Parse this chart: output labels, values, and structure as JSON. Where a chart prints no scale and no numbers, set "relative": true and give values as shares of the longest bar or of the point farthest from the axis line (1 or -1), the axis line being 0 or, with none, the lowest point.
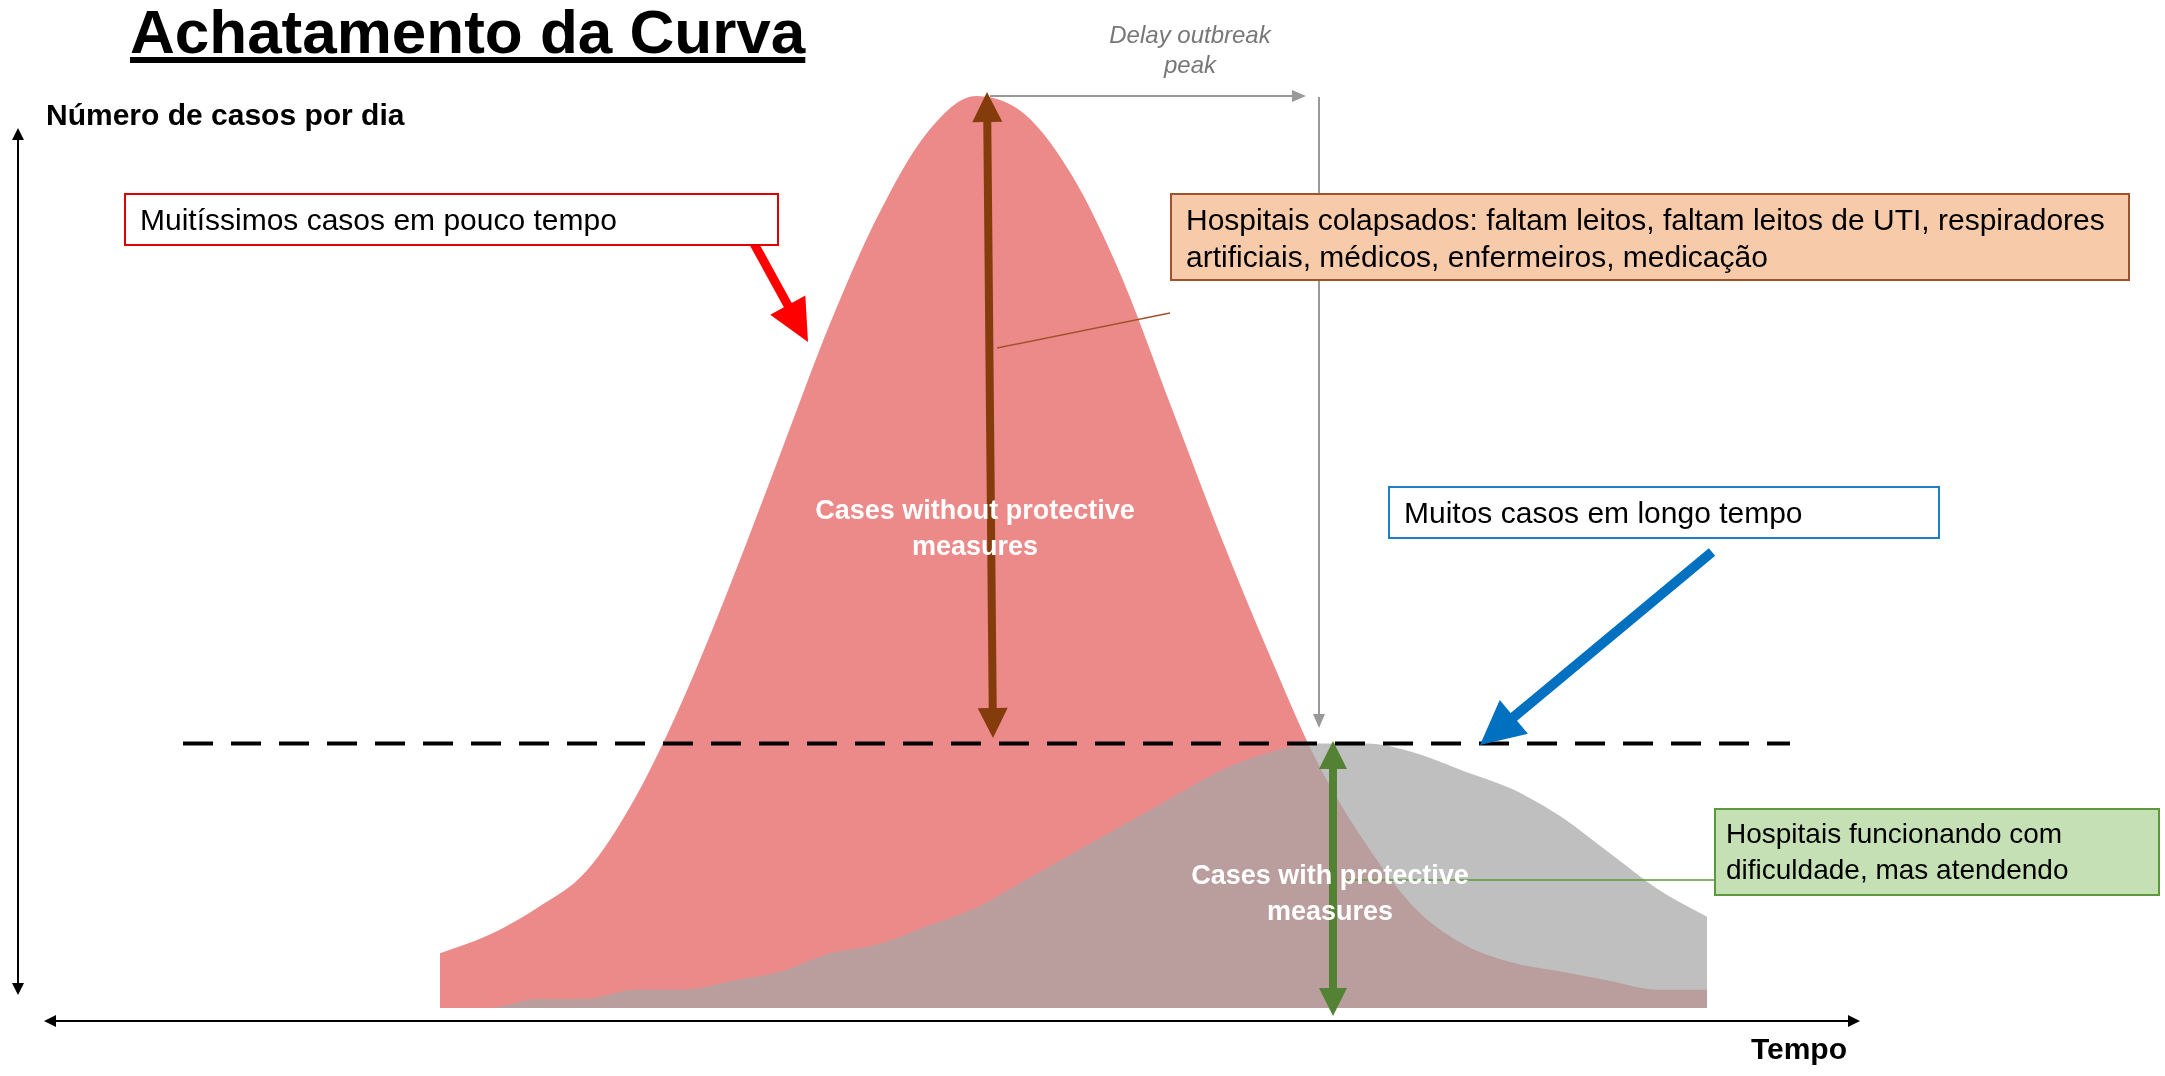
{
  "chart_data": {
    "type": "area",
    "title": "Achatamento da Curva",
    "xlabel": "Tempo",
    "ylabel": "Número de casos por dia",
    "relative": true,
    "categories": [
      null,
      null,
      null,
      null,
      null,
      null,
      null,
      null,
      null,
      null,
      null,
      null,
      null,
      null,
      null,
      null,
      null,
      null,
      null,
      null,
      null,
      null,
      null,
      null,
      null,
      null,
      null
    ],
    "series": [
      {
        "color": "#ec8a8a",
        "values": [
          0.06,
          0.08,
          0.11,
          0.15,
          0.23,
          0.34,
          0.47,
          0.61,
          0.75,
          0.87,
          0.96,
          1,
          0.98,
          0.91,
          0.8,
          0.66,
          0.52,
          0.39,
          0.27,
          0.18,
          0.11,
          0.07,
          0.05,
          0.04,
          0.03,
          0.02,
          0.02
        ]
      },
      {
        "color": "#a6a6a6",
        "values": [
          0,
          0,
          0.01,
          0.01,
          0.02,
          0.02,
          0.03,
          0.04,
          0.06,
          0.07,
          0.09,
          0.11,
          0.14,
          0.17,
          0.2,
          0.23,
          0.26,
          0.28,
          0.29,
          0.29,
          0.28,
          0.26,
          0.24,
          0.21,
          0.17,
          0.13,
          0.1
        ]
      }
    ],
    "ref_lines": [
      {
        "axis": "y",
        "value": 0.29,
        "line_style": "dashed",
        "color": "#000000"
      }
    ],
    "annotations": [
      "Delay outbreak peak",
      "Cases without protective measures",
      "Cases with protective measures",
      "Muitíssimos casos em pouco tempo",
      "Hospitais colapsados: faltam leitos, faltam leitos de UTI, respiradores artificiais, médicos, enfermeiros, medicação",
      "Muitos casos em longo tempo",
      "Hospitais funcionando com dificuldade, mas atendendo"
    ]
  }
}
